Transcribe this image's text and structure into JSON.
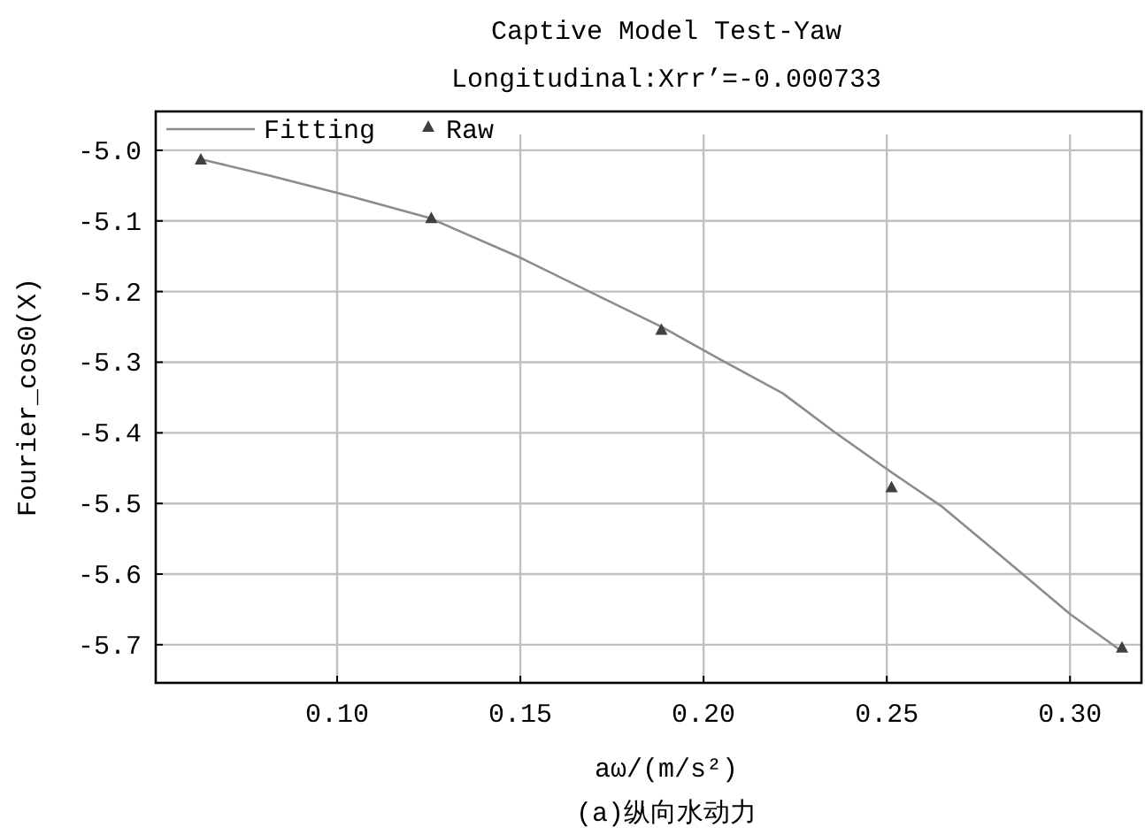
{
  "chart_data": {
    "type": "line",
    "title": "Captive Model Test-Yaw",
    "subtitle": "Longitudinal:Xrr’=-0.000733",
    "xlabel": "aω/(m/s²)",
    "ylabel": "Fourier_cos0(X)",
    "annotations": [
      "(a)纵向水动力"
    ],
    "xlim": [
      0.0505,
      0.3195
    ],
    "ylim": [
      -5.754,
      -4.945
    ],
    "xticks": [
      {
        "value": 0.1,
        "label": "0.10"
      },
      {
        "value": 0.15,
        "label": "0.15"
      },
      {
        "value": 0.2,
        "label": "0.20"
      },
      {
        "value": 0.25,
        "label": "0.25"
      },
      {
        "value": 0.3,
        "label": "0.30"
      }
    ],
    "yticks": [
      {
        "value": -5.0,
        "label": "-5.0"
      },
      {
        "value": -5.1,
        "label": "-5.1"
      },
      {
        "value": -5.2,
        "label": "-5.2"
      },
      {
        "value": -5.3,
        "label": "-5.3"
      },
      {
        "value": -5.4,
        "label": "-5.4"
      },
      {
        "value": -5.5,
        "label": "-5.5"
      },
      {
        "value": -5.6,
        "label": "-5.6"
      },
      {
        "value": -5.7,
        "label": "-5.7"
      }
    ],
    "grid": true,
    "legend": "top left",
    "series": [
      {
        "name": "Fitting",
        "color": "#8c8c8c",
        "marker": "none",
        "line_style": "solid",
        "x": [
          0.063,
          0.0818,
          0.1028,
          0.1253,
          0.15,
          0.1692,
          0.1886,
          0.2041,
          0.2216,
          0.2355,
          0.2513,
          0.2652,
          0.2827,
          0.3001,
          0.3138
        ],
        "values": [
          -5.013,
          -5.036,
          -5.064,
          -5.096,
          -5.152,
          -5.201,
          -5.25,
          -5.295,
          -5.344,
          -5.398,
          -5.456,
          -5.505,
          -5.581,
          -5.657,
          -5.708
        ]
      },
      {
        "name": "Raw",
        "type": "scatter",
        "color": "#404040",
        "marker": "triangle",
        "x": [
          0.0628,
          0.1257,
          0.1885,
          0.2513,
          0.3142
        ],
        "values": [
          -5.014,
          -5.097,
          -5.255,
          -5.478,
          -5.705
        ]
      }
    ]
  }
}
